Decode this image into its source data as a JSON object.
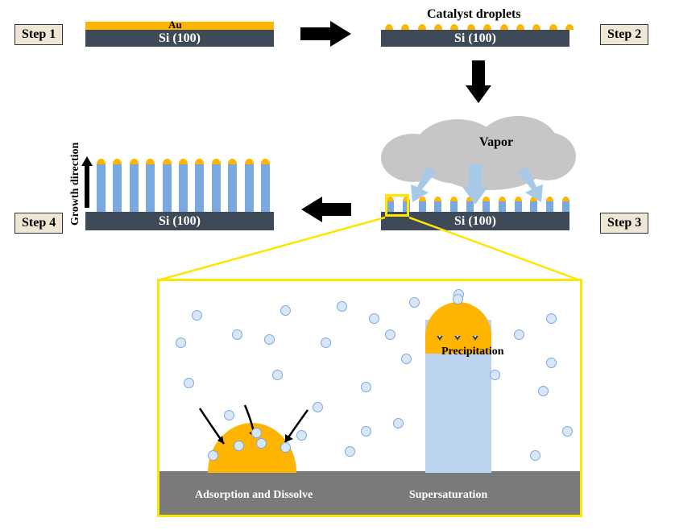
{
  "colors": {
    "gold": "#ffb400",
    "substrate": "#3f4a58",
    "wire": "#7aa9e0",
    "wire_light": "#bcd4f0",
    "arrow_black": "#000000",
    "vapor_arrow": "#a6c9e8",
    "cloud": "#c6c6c6",
    "yellow_border": "#ffe600",
    "particle_fill": "#d9e6f5",
    "particle_stroke": "#7aa9e0",
    "label_bg": "#f0e6d5",
    "detail_ground": "#7a7a7a"
  },
  "steps": {
    "s1": {
      "label": "Step 1",
      "substrate": "Si (100)",
      "au_label": "Au"
    },
    "s2": {
      "label": "Step 2",
      "substrate": "Si (100)",
      "droplets_title": "Catalyst droplets"
    },
    "s3": {
      "label": "Step 3",
      "substrate": "Si (100)",
      "vapor_label": "Vapor"
    },
    "s4": {
      "label": "Step 4",
      "substrate": "Si (100)",
      "growth_label": "Growth direction"
    }
  },
  "detail": {
    "adsorb_label": "Adsorption and Dissolve",
    "supersat_label": "Supersaturation",
    "precip_label": "Precipitation"
  },
  "layout": {
    "step2_droplet_count": 12,
    "step3_droplet_count": 12,
    "step4_wire_count": 11,
    "particle_count": 30
  }
}
